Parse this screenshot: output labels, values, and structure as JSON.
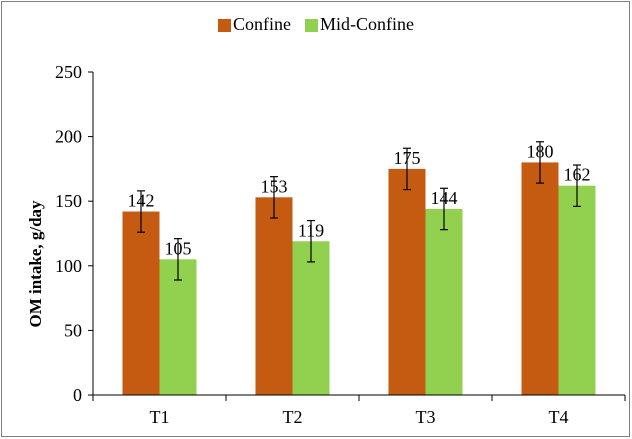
{
  "chart_data": {
    "type": "bar",
    "categories": [
      "T1",
      "T2",
      "T3",
      "T4"
    ],
    "series": [
      {
        "name": "Confine",
        "color": "#c55a11",
        "values": [
          142,
          153,
          175,
          180
        ],
        "errors": [
          16,
          16,
          16,
          16
        ]
      },
      {
        "name": "Mid-Confine",
        "color": "#92d050",
        "values": [
          105,
          119,
          144,
          162
        ],
        "errors": [
          16,
          16,
          16,
          16
        ]
      }
    ],
    "title": "",
    "xlabel": "",
    "ylabel": "OM intake, g/day",
    "ylim": [
      0,
      250
    ],
    "yticks": [
      "0",
      "50",
      "100",
      "150",
      "200",
      "250"
    ],
    "grid": false,
    "legend_position": "top"
  }
}
